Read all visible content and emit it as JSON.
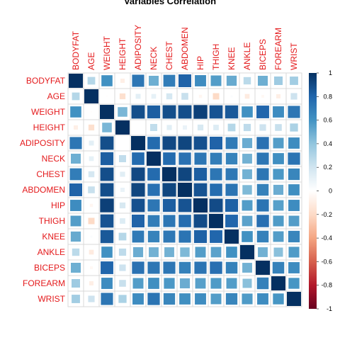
{
  "chart_data": {
    "type": "heatmap",
    "title": "Variables Correlation",
    "variables": [
      "BODYFAT",
      "AGE",
      "WEIGHT",
      "HEIGHT",
      "ADIPOSITY",
      "NECK",
      "CHEST",
      "ABDOMEN",
      "HIP",
      "THIGH",
      "KNEE",
      "ANKLE",
      "BICEPS",
      "FOREARM",
      "WRIST"
    ],
    "matrix": [
      [
        1.0,
        0.29,
        0.61,
        -0.09,
        0.73,
        0.49,
        0.7,
        0.81,
        0.63,
        0.56,
        0.51,
        0.27,
        0.49,
        0.36,
        0.35
      ],
      [
        0.29,
        1.0,
        -0.01,
        -0.17,
        0.12,
        0.11,
        0.18,
        0.23,
        -0.05,
        -0.2,
        0.02,
        -0.11,
        -0.04,
        -0.09,
        0.21
      ],
      [
        0.61,
        -0.01,
        1.0,
        0.46,
        0.89,
        0.83,
        0.89,
        0.89,
        0.94,
        0.87,
        0.85,
        0.61,
        0.8,
        0.63,
        0.73
      ],
      [
        -0.09,
        -0.17,
        0.46,
        1.0,
        0.0,
        0.25,
        0.13,
        0.09,
        0.17,
        0.15,
        0.29,
        0.26,
        0.21,
        0.23,
        0.32
      ],
      [
        0.73,
        0.12,
        0.89,
        0.0,
        1.0,
        0.78,
        0.91,
        0.92,
        0.88,
        0.81,
        0.71,
        0.5,
        0.75,
        0.56,
        0.63
      ],
      [
        0.49,
        0.11,
        0.83,
        0.25,
        0.78,
        1.0,
        0.78,
        0.75,
        0.73,
        0.7,
        0.67,
        0.48,
        0.73,
        0.62,
        0.74
      ],
      [
        0.7,
        0.18,
        0.89,
        0.13,
        0.91,
        0.78,
        1.0,
        0.92,
        0.83,
        0.73,
        0.72,
        0.48,
        0.73,
        0.58,
        0.66
      ],
      [
        0.81,
        0.23,
        0.89,
        0.09,
        0.92,
        0.75,
        0.92,
        1.0,
        0.87,
        0.77,
        0.74,
        0.45,
        0.68,
        0.5,
        0.62
      ],
      [
        0.63,
        -0.05,
        0.94,
        0.17,
        0.88,
        0.73,
        0.83,
        0.87,
        1.0,
        0.9,
        0.82,
        0.56,
        0.74,
        0.55,
        0.63
      ],
      [
        0.56,
        -0.2,
        0.87,
        0.15,
        0.81,
        0.7,
        0.73,
        0.77,
        0.9,
        1.0,
        0.8,
        0.54,
        0.76,
        0.57,
        0.56
      ],
      [
        0.51,
        0.02,
        0.85,
        0.29,
        0.71,
        0.67,
        0.72,
        0.74,
        0.82,
        0.8,
        1.0,
        0.61,
        0.68,
        0.56,
        0.66
      ],
      [
        0.27,
        -0.11,
        0.61,
        0.26,
        0.5,
        0.48,
        0.48,
        0.45,
        0.56,
        0.54,
        0.61,
        1.0,
        0.48,
        0.42,
        0.57
      ],
      [
        0.49,
        -0.04,
        0.8,
        0.21,
        0.75,
        0.73,
        0.73,
        0.68,
        0.74,
        0.76,
        0.68,
        0.48,
        1.0,
        0.68,
        0.63
      ],
      [
        0.36,
        -0.09,
        0.63,
        0.23,
        0.56,
        0.62,
        0.58,
        0.5,
        0.55,
        0.57,
        0.56,
        0.42,
        0.68,
        1.0,
        0.59
      ],
      [
        0.35,
        0.21,
        0.73,
        0.32,
        0.63,
        0.74,
        0.66,
        0.62,
        0.63,
        0.56,
        0.66,
        0.57,
        0.63,
        0.59,
        1.0
      ]
    ],
    "color_scale": {
      "range": [
        -1,
        1
      ],
      "ticks": [
        "1",
        "0.8",
        "0.6",
        "0.4",
        "0.2",
        "0",
        "-0.2",
        "-0.4",
        "-0.6",
        "-0.8",
        "-1"
      ],
      "colors": [
        "#67001f",
        "#b2182b",
        "#d6604d",
        "#f4a582",
        "#fddbc7",
        "#ffffff",
        "#d1e5f0",
        "#92c5de",
        "#4393c3",
        "#2166ac",
        "#053061"
      ]
    },
    "label_color": "#e41a1c",
    "shape": "square sized by |r|"
  }
}
